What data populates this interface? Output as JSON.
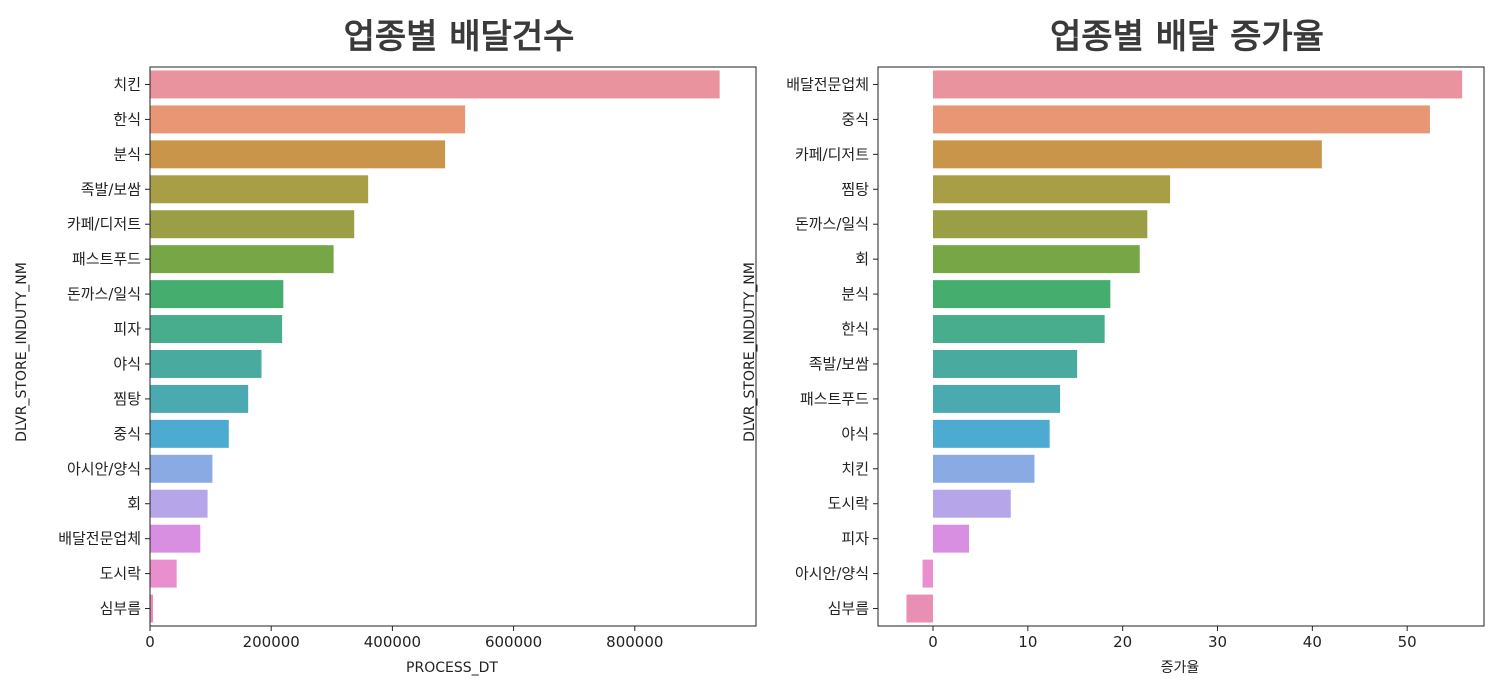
{
  "chart_data": [
    {
      "type": "bar",
      "orientation": "horizontal",
      "title": "업종별 배달건수",
      "xlabel": "PROCESS_DT",
      "ylabel": "DLVR_STORE_INDUTY_NM",
      "xlim": [
        0,
        1000000
      ],
      "xticks": [
        0,
        200000,
        400000,
        600000,
        800000
      ],
      "xtick_labels": [
        "0",
        "200000",
        "400000",
        "600000",
        "800000"
      ],
      "categories": [
        "치킨",
        "한식",
        "분식",
        "족발/보쌈",
        "카페/디저트",
        "패스트푸드",
        "돈까스/일식",
        "피자",
        "야식",
        "찜탕",
        "중식",
        "아시안/양식",
        "회",
        "배달전문업체",
        "도시락",
        "심부름"
      ],
      "values": [
        940000,
        520000,
        487000,
        360000,
        337000,
        303000,
        220000,
        218000,
        184000,
        162000,
        130000,
        103000,
        95000,
        83000,
        44000,
        5000
      ],
      "colors": [
        "#e8939d",
        "#e89673",
        "#c9954a",
        "#a89e46",
        "#9a9f45",
        "#76a646",
        "#45ad6e",
        "#47ad8d",
        "#49ab9f",
        "#4aaab0",
        "#4daad0",
        "#89aae3",
        "#b7a5ea",
        "#d88fe2",
        "#e98fce",
        "#e98fb5"
      ],
      "grid": false
    },
    {
      "type": "bar",
      "orientation": "horizontal",
      "title": "업종별 배달 증가율",
      "xlabel": "증가율",
      "ylabel": "DLVR_STORE_INDUTY_NM",
      "xlim": [
        -5.8,
        58.1
      ],
      "xticks": [
        0,
        10,
        20,
        30,
        40,
        50
      ],
      "xtick_labels": [
        "0",
        "10",
        "20",
        "30",
        "40",
        "50"
      ],
      "categories": [
        "배달전문업체",
        "중식",
        "카페/디저트",
        "찜탕",
        "돈까스/일식",
        "회",
        "분식",
        "한식",
        "족발/보쌈",
        "패스트푸드",
        "야식",
        "치킨",
        "도시락",
        "피자",
        "아시안/양식",
        "심부름"
      ],
      "values": [
        55.8,
        52.4,
        41.0,
        25.0,
        22.6,
        21.8,
        18.7,
        18.1,
        15.2,
        13.4,
        12.3,
        10.7,
        8.2,
        3.8,
        -1.1,
        -2.8
      ],
      "colors": [
        "#e8939d",
        "#e89673",
        "#c9954a",
        "#a89e46",
        "#9a9f45",
        "#76a646",
        "#45ad6e",
        "#47ad8d",
        "#49ab9f",
        "#4aaab0",
        "#4daad0",
        "#89aae3",
        "#b7a5ea",
        "#d88fe2",
        "#e98fce",
        "#e98fb5"
      ],
      "grid": false
    }
  ]
}
